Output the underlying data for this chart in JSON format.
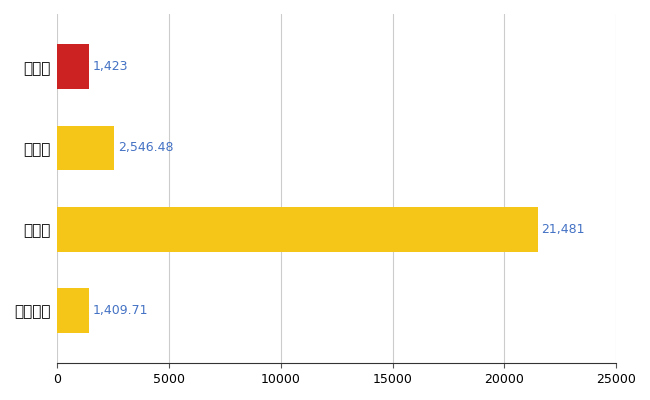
{
  "categories": [
    "三次市",
    "県平均",
    "県最大",
    "全国平均"
  ],
  "values": [
    1423,
    2546.48,
    21481,
    1409.71
  ],
  "bar_colors": [
    "#cc2222",
    "#f5c518",
    "#f5c518",
    "#f5c518"
  ],
  "value_labels": [
    "1,423",
    "2,546.48",
    "21,481",
    "1,409.71"
  ],
  "xlim": [
    0,
    25000
  ],
  "xticks": [
    0,
    5000,
    10000,
    15000,
    20000,
    25000
  ],
  "xtick_labels": [
    "0",
    "5000",
    "10000",
    "15000",
    "20000",
    "25000"
  ],
  "background_color": "#ffffff",
  "grid_color": "#cccccc",
  "label_color": "#4472c4",
  "bar_height": 0.55,
  "figsize": [
    6.5,
    4.0
  ],
  "dpi": 100
}
